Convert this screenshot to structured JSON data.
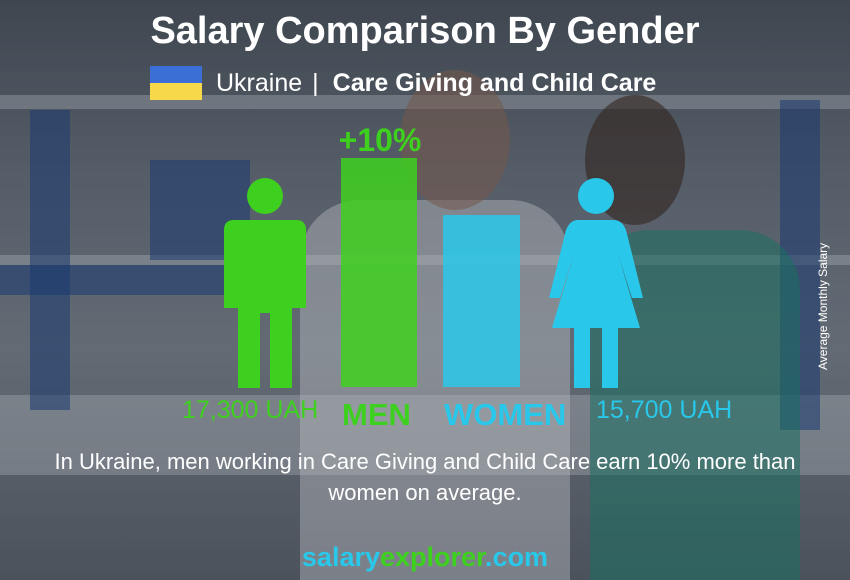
{
  "title": "Salary Comparison By Gender",
  "subtitle": {
    "country": "Ukraine",
    "separator": "|",
    "job": "Care Giving and Child Care"
  },
  "flag_colors": [
    "#3c6fd6",
    "#f7d84a"
  ],
  "chart_data": {
    "type": "bar",
    "categories": [
      "MEN",
      "WOMEN"
    ],
    "values": [
      17300,
      15700
    ],
    "value_labels": [
      "17,300 UAH",
      "15,700 UAH"
    ],
    "difference_label": "+10%",
    "ylabel": "Average Monthly Salary",
    "colors": [
      "#3ed01e",
      "#29c8ea"
    ]
  },
  "description": "In Ukraine, men working in Care Giving and Child Care earn 10% more than women on average.",
  "brand": {
    "part1": "salary",
    "part2": "explorer",
    "part3": ".com"
  }
}
